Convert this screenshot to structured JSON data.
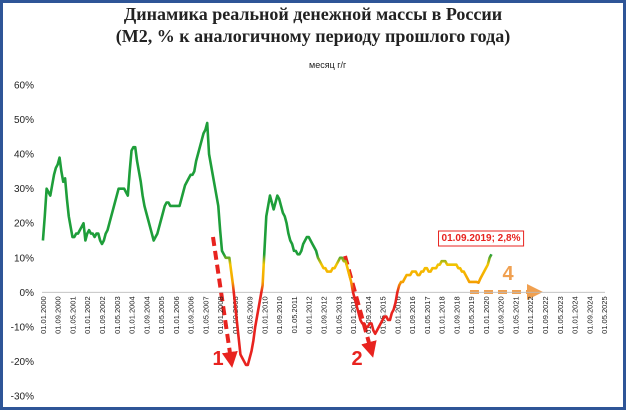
{
  "chart_data": {
    "type": "line",
    "title": "Динамика реальной денежной массы в России",
    "subtitle": "(М2, % к аналогичному периоду прошлого года)",
    "categories": [
      "01.01.2000",
      null,
      null,
      null,
      null,
      null,
      null,
      null,
      "01.09.2000",
      null,
      null,
      null,
      null,
      null,
      null,
      null,
      "01.05.2001",
      null,
      null,
      null,
      null,
      null,
      null,
      null,
      "01.01.2002",
      null,
      null,
      null,
      null,
      null,
      null,
      null,
      "01.09.2002",
      null,
      null,
      null,
      null,
      null,
      null,
      null,
      "01.05.2003",
      null,
      null,
      null,
      null,
      null,
      null,
      null,
      "01.01.2004",
      null,
      null,
      null,
      null,
      null,
      null,
      null,
      "01.09.2004",
      null,
      null,
      null,
      null,
      null,
      null,
      null,
      "01.05.2005",
      null,
      null,
      null,
      null,
      null,
      null,
      null,
      "01.01.2006",
      null,
      null,
      null,
      null,
      null,
      null,
      null,
      "01.09.2006",
      null,
      null,
      null,
      null,
      null,
      null,
      null,
      "01.05.2007",
      null,
      null,
      null,
      null,
      null,
      null,
      null,
      "01.01.2008",
      null,
      null,
      null,
      null,
      null,
      null,
      null,
      "01.09.2008",
      null,
      null,
      null,
      null,
      null,
      null,
      null,
      "01.05.2009",
      null,
      null,
      null,
      null,
      null,
      null,
      null,
      "01.01.2010",
      null,
      null,
      null,
      null,
      null,
      null,
      null,
      "01.09.2010",
      null,
      null,
      null,
      null,
      null,
      null,
      null,
      "01.05.2011",
      null,
      null,
      null,
      null,
      null,
      null,
      null,
      "01.01.2012",
      null,
      null,
      null,
      null,
      null,
      null,
      null,
      "01.09.2012",
      null,
      null,
      null,
      null,
      null,
      null,
      null,
      "01.05.2013",
      null,
      null,
      null,
      null,
      null,
      null,
      null,
      "01.01.2014",
      null,
      null,
      null,
      null,
      null,
      null,
      null,
      "01.09.2014",
      null,
      null,
      null,
      null,
      null,
      null,
      null,
      "01.05.2015",
      null,
      null,
      null,
      null,
      null,
      null,
      null,
      "01.01.2016",
      null,
      null,
      null,
      null,
      null,
      null,
      null,
      "01.09.2016",
      null,
      null,
      null,
      null,
      null,
      null,
      null,
      "01.05.2017",
      null,
      null,
      null,
      null,
      null,
      null,
      null,
      "01.01.2018",
      null,
      null,
      null,
      null,
      null,
      null,
      null,
      "01.09.2018",
      null,
      null,
      null,
      null,
      null,
      null,
      null,
      "01.05.2019",
      null,
      null,
      null,
      null,
      null,
      null,
      null,
      "01.01.2020",
      null,
      null,
      null,
      null,
      null,
      null,
      null,
      "01.09.2020",
      null,
      null,
      null,
      null,
      null,
      null,
      null,
      "01.05.2021",
      null,
      null,
      null,
      null,
      null,
      null,
      null,
      "01.01.2022",
      null,
      null,
      null,
      null,
      null,
      null,
      null,
      "01.09.2022",
      null,
      null,
      null,
      null,
      null,
      null,
      null,
      "01.05.2023",
      null,
      null,
      null,
      null,
      null,
      null,
      null,
      "01.01.2024",
      null,
      null,
      null,
      null,
      null,
      null,
      null,
      "01.09.2024",
      null,
      null,
      null,
      null,
      null,
      null,
      null,
      "01.05.2025"
    ],
    "series": [
      {
        "name": "месяц г/г",
        "color": "#1e9e3a",
        "color_stops": [
          {
            "value": 11,
            "color": "#1e9e3a"
          },
          {
            "value": 8,
            "color": "#f5c400"
          },
          {
            "value": 3,
            "color": "#f5a300"
          },
          {
            "value": 0,
            "color": "#e8231f"
          }
        ],
        "values": [
          15,
          22,
          30,
          29,
          28,
          31,
          34,
          36,
          37,
          39,
          35,
          32,
          33,
          27,
          22,
          19,
          16,
          16,
          17,
          17,
          18,
          19,
          20,
          15,
          17,
          18,
          17,
          17,
          16,
          17,
          17,
          15,
          14,
          15,
          17,
          18,
          20,
          22,
          24,
          26,
          28,
          30,
          30,
          30,
          30,
          29,
          28,
          35,
          41,
          42,
          42,
          38,
          35,
          32,
          28,
          25,
          23,
          21,
          19,
          17,
          15,
          16,
          17,
          19,
          21,
          23,
          25,
          26,
          26,
          25,
          25,
          25,
          25,
          25,
          25,
          27,
          29,
          31,
          32,
          33,
          34,
          34,
          35,
          38,
          40,
          42,
          44,
          46,
          47,
          49,
          40,
          37,
          34,
          31,
          28,
          25,
          18,
          12,
          11,
          10,
          10,
          10,
          6,
          2,
          -3,
          -8,
          -13,
          -18,
          -19,
          -20,
          -21,
          -21,
          -19,
          -17,
          -14,
          -10,
          -7,
          -4,
          -1,
          2,
          12,
          22,
          25,
          28,
          26,
          24,
          26,
          28,
          27,
          25,
          23,
          22,
          20,
          17,
          15,
          14,
          12,
          12,
          11,
          11,
          12,
          14,
          15,
          16,
          16,
          15,
          14,
          13,
          12,
          10,
          9,
          8,
          7,
          7,
          6,
          6,
          6,
          7,
          7,
          8,
          9,
          10,
          10,
          9,
          9,
          7,
          5,
          3,
          0,
          -2,
          -4,
          -6,
          -8,
          -9,
          -9,
          -10,
          -10,
          -9,
          -9,
          -11,
          -12,
          -11,
          -10,
          -9,
          -8,
          -7,
          -7,
          -8,
          -8,
          -6,
          -5,
          -3,
          0,
          2,
          3,
          3,
          4,
          5,
          5,
          5,
          6,
          6,
          6,
          5,
          5,
          6,
          6,
          7,
          7,
          6,
          6,
          7,
          7,
          7,
          8,
          8,
          9,
          9,
          9,
          8,
          8,
          8,
          8,
          8,
          8,
          7,
          7,
          6,
          6,
          5,
          4,
          3,
          3,
          3,
          3,
          3,
          2.8,
          4,
          5,
          6,
          7,
          8,
          10,
          11,
          null,
          null,
          null,
          null,
          null,
          null,
          null,
          null,
          null,
          null,
          null,
          null,
          null,
          null,
          null,
          null,
          null,
          null,
          null,
          null,
          null,
          null,
          null,
          null,
          null,
          null,
          null,
          null,
          null,
          null,
          null,
          null,
          null,
          null,
          null,
          null,
          null,
          null,
          null,
          null,
          null,
          null,
          null,
          null,
          null,
          null,
          null,
          null,
          null,
          null,
          null,
          null,
          null,
          null,
          null,
          null,
          null,
          null,
          null,
          null,
          null
        ]
      }
    ],
    "ylim": [
      -30,
      60
    ],
    "yticks": [
      {
        "value": -30,
        "label": "-30%"
      },
      {
        "value": -20,
        "label": "-20%"
      },
      {
        "value": -10,
        "label": "-10%"
      },
      {
        "value": 0,
        "label": "0%"
      },
      {
        "value": 10,
        "label": "10%"
      },
      {
        "value": 20,
        "label": "20%"
      },
      {
        "value": 30,
        "label": "30%"
      },
      {
        "value": 40,
        "label": "40%"
      },
      {
        "value": 50,
        "label": "50%"
      },
      {
        "value": 60,
        "label": "60%"
      }
    ],
    "grid": false,
    "annotations": [
      {
        "text": "1",
        "color": "#e8231f"
      },
      {
        "text": "2",
        "color": "#e8231f"
      },
      {
        "text": "4",
        "color": "#f0a050"
      },
      {
        "text": "01.09.2019; 2,8%",
        "color": "#e8231f"
      }
    ]
  }
}
